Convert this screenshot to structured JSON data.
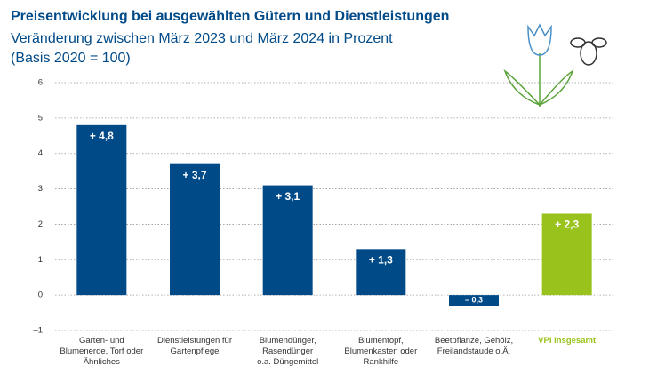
{
  "chart_data": {
    "type": "bar",
    "title": "Preisentwicklung bei ausgewählten Gütern und Dienstleistungen",
    "subtitle": "Veränderung zwischen März 2023 und März 2024 in Prozent",
    "note": "(Basis 2020 = 100)",
    "categories": [
      "Garten- und\nBlumenerde, Torf oder\nÄhnliches",
      "Dienstleistungen für\nGartenpflege",
      "Blumendünger,\nRasendünger\no.a. Düngemittel",
      "Blumentopf,\nBlumenkasten oder\nRankhilfe",
      "Beetpflanze, Gehölz,\nFreilandstaude o.Ä.",
      "VPI Insgesamt"
    ],
    "values": [
      4.8,
      3.7,
      3.1,
      1.3,
      -0.3,
      2.3
    ],
    "value_labels": [
      "+ 4,8",
      "+ 3,7",
      "+ 3,1",
      "+ 1,3",
      "– 0,3",
      "+ 2,3"
    ],
    "colors": [
      "#004a87",
      "#004a87",
      "#004a87",
      "#004a87",
      "#004a87",
      "#99c31c"
    ],
    "ylim": [
      -1,
      6
    ],
    "yticks": [
      {
        "value": -1,
        "label": "–1"
      },
      0,
      1,
      2,
      3,
      4,
      5,
      6
    ],
    "grid": true
  }
}
